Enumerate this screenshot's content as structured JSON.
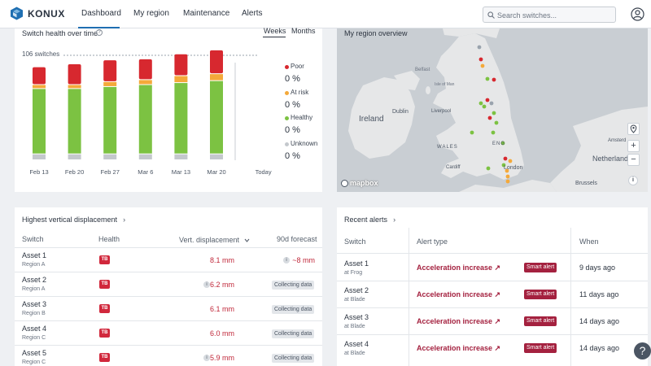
{
  "brand": {
    "name": "KONUX"
  },
  "nav": {
    "tabs": [
      {
        "label": "Dashboard",
        "active": true
      },
      {
        "label": "My region",
        "active": false
      },
      {
        "label": "Maintenance",
        "active": false
      },
      {
        "label": "Alerts",
        "active": false
      }
    ],
    "search_placeholder": "Search switches...",
    "accent_color": "#1f6fb2"
  },
  "health_card": {
    "title": "Switch health over time",
    "help_icon": "?",
    "toggle": {
      "weeks": "Weeks",
      "months": "Months",
      "selected": "Weeks"
    },
    "total_label": "106 switches",
    "legend": [
      {
        "label": "Poor",
        "value": "0 %",
        "color": "#d7282f"
      },
      {
        "label": "At risk",
        "value": "0 %",
        "color": "#f4a93a"
      },
      {
        "label": "Healthy",
        "value": "0 %",
        "color": "#7cc242"
      },
      {
        "label": "Unknown",
        "value": "0 %",
        "color": "#c4c8cd"
      }
    ]
  },
  "chart_data": {
    "type": "bar",
    "stacked": true,
    "title": "Switch health over time",
    "categories": [
      "Feb 13",
      "Feb 20",
      "Feb 27",
      "Mar 6",
      "Mar 13",
      "Mar 20",
      "Today"
    ],
    "ylim": [
      0,
      106
    ],
    "reference_line": {
      "value": 106,
      "label": "106 switches"
    },
    "series": [
      {
        "name": "Unknown",
        "color": "#c4c8cd",
        "values": [
          6,
          6,
          6,
          6,
          6,
          6,
          0
        ]
      },
      {
        "name": "Healthy",
        "color": "#7cc242",
        "values": [
          66,
          66,
          68,
          70,
          72,
          74,
          0
        ]
      },
      {
        "name": "At risk",
        "color": "#f4a93a",
        "values": [
          4,
          4,
          5,
          5,
          7,
          7,
          0
        ]
      },
      {
        "name": "Poor",
        "color": "#d7282f",
        "values": [
          18,
          21,
          22,
          21,
          22,
          24,
          0
        ]
      }
    ]
  },
  "map_card": {
    "title": "My region overview",
    "attribution": "mapbox",
    "labels": [
      "Ireland",
      "Dublin",
      "Liverpool",
      "WALES",
      "Cardiff",
      "ENG",
      "London",
      "Netherland",
      "Brussels",
      "Amsterd",
      "Belfast",
      "Isle of Man"
    ],
    "controls": {
      "zoom_in": "+",
      "zoom_out": "−",
      "locate": "locate",
      "info": "i"
    }
  },
  "displacement_card": {
    "title": "Highest vertical displacement",
    "columns": [
      "Switch",
      "Health",
      "Vert. displacement",
      "90d forecast"
    ],
    "rows": [
      {
        "name": "Asset 1",
        "region": "Region A",
        "health": "TB",
        "value": "8.1 mm",
        "info": false,
        "forecast": "~8 mm",
        "forecast_info": true,
        "forecast_badge": false
      },
      {
        "name": "Asset 2",
        "region": "Region A",
        "health": "TB",
        "value": "6.2 mm",
        "info": true,
        "forecast": "Collecting data",
        "forecast_info": false,
        "forecast_badge": true
      },
      {
        "name": "Asset 3",
        "region": "Region B",
        "health": "TB",
        "value": "6.1 mm",
        "info": false,
        "forecast": "Collecting data",
        "forecast_info": false,
        "forecast_badge": true
      },
      {
        "name": "Asset 4",
        "region": "Region C",
        "health": "TB",
        "value": "6.0 mm",
        "info": false,
        "forecast": "Collecting data",
        "forecast_info": false,
        "forecast_badge": true
      },
      {
        "name": "Asset 5",
        "region": "Region C",
        "health": "TB",
        "value": "5.9 mm",
        "info": true,
        "forecast": "Collecting data",
        "forecast_info": false,
        "forecast_badge": true
      }
    ]
  },
  "alerts_card": {
    "title": "Recent alerts",
    "columns": [
      "Switch",
      "Alert type",
      "When"
    ],
    "rows": [
      {
        "name": "Asset 1",
        "location": "at Frog",
        "type": "Acceleration increase ↗",
        "badge": "Smart alert",
        "when": "9 days ago"
      },
      {
        "name": "Asset 2",
        "location": "at Blade",
        "type": "Acceleration increase ↗",
        "badge": "Smart alert",
        "when": "11 days ago"
      },
      {
        "name": "Asset 3",
        "location": "at Blade",
        "type": "Acceleration increase ↗",
        "badge": "Smart alert",
        "when": "14 days ago"
      },
      {
        "name": "Asset 4",
        "location": "at Blade",
        "type": "Acceleration increase ↗",
        "badge": "Smart alert",
        "when": "14 days ago"
      }
    ]
  },
  "help": {
    "label": "?"
  }
}
